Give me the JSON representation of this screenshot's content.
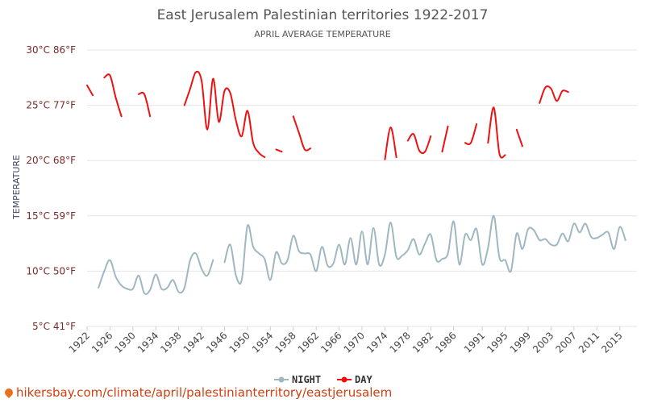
{
  "chart_data": {
    "type": "line",
    "title": "East Jerusalem Palestinian territories 1922-2017",
    "subtitle": "APRIL AVERAGE TEMPERATURE",
    "ylabel": "TEMPERATURE",
    "ylim": [
      5,
      30
    ],
    "yticks": [
      {
        "value": 5,
        "label": "5°C 41°F"
      },
      {
        "value": 10,
        "label": "10°C 50°F"
      },
      {
        "value": 15,
        "label": "15°C 59°F"
      },
      {
        "value": 20,
        "label": "20°C 68°F"
      },
      {
        "value": 25,
        "label": "25°C 77°F"
      },
      {
        "value": 30,
        "label": "30°C 86°F"
      }
    ],
    "xlim": [
      1922,
      2018
    ],
    "xticks": [
      1922,
      1926,
      1930,
      1934,
      1938,
      1942,
      1946,
      1950,
      1954,
      1958,
      1962,
      1966,
      1970,
      1974,
      1978,
      1982,
      1986,
      1991,
      1995,
      1999,
      2003,
      2007,
      2011,
      2015
    ],
    "grid": true,
    "legend_position": "bottom-center",
    "series": [
      {
        "name": "NIGHT",
        "color": "#9fb7c0",
        "values": [
          [
            1924,
            8.5
          ],
          [
            1925,
            10.0
          ],
          [
            1926,
            11.0
          ],
          [
            1927,
            9.5
          ],
          [
            1928,
            8.7
          ],
          [
            1929,
            8.4
          ],
          [
            1930,
            8.4
          ],
          [
            1931,
            9.6
          ],
          [
            1932,
            8.0
          ],
          [
            1933,
            8.3
          ],
          [
            1934,
            9.7
          ],
          [
            1935,
            8.4
          ],
          [
            1936,
            8.5
          ],
          [
            1937,
            9.2
          ],
          [
            1938,
            8.1
          ],
          [
            1939,
            8.5
          ],
          [
            1940,
            11.0
          ],
          [
            1941,
            11.6
          ],
          [
            1942,
            10.2
          ],
          [
            1943,
            9.6
          ],
          [
            1944,
            11.0
          ],
          null,
          [
            1946,
            10.8
          ],
          [
            1947,
            12.4
          ],
          [
            1948,
            9.6
          ],
          [
            1949,
            9.2
          ],
          [
            1950,
            14.1
          ],
          [
            1951,
            12.2
          ],
          [
            1952,
            11.6
          ],
          [
            1953,
            11.1
          ],
          [
            1954,
            9.2
          ],
          [
            1955,
            11.7
          ],
          [
            1956,
            10.7
          ],
          [
            1957,
            11.0
          ],
          [
            1958,
            13.2
          ],
          [
            1959,
            11.8
          ],
          [
            1960,
            11.6
          ],
          [
            1961,
            11.5
          ],
          [
            1962,
            10.0
          ],
          [
            1963,
            12.2
          ],
          [
            1964,
            10.5
          ],
          [
            1965,
            10.7
          ],
          [
            1966,
            12.4
          ],
          [
            1967,
            10.6
          ],
          [
            1968,
            13.0
          ],
          [
            1969,
            10.6
          ],
          [
            1970,
            13.6
          ],
          [
            1971,
            10.6
          ],
          [
            1972,
            13.9
          ],
          [
            1973,
            10.6
          ],
          [
            1974,
            11.5
          ],
          [
            1975,
            14.4
          ],
          [
            1976,
            11.3
          ],
          [
            1977,
            11.4
          ],
          [
            1978,
            11.9
          ],
          [
            1979,
            12.9
          ],
          [
            1980,
            11.5
          ],
          [
            1981,
            12.5
          ],
          [
            1982,
            13.3
          ],
          [
            1983,
            11.0
          ],
          [
            1984,
            11.1
          ],
          [
            1985,
            11.6
          ],
          [
            1986,
            14.5
          ],
          [
            1987,
            10.6
          ],
          [
            1988,
            13.3
          ],
          [
            1989,
            12.8
          ],
          [
            1990,
            13.8
          ],
          [
            1991,
            10.6
          ],
          [
            1992,
            12.1
          ],
          [
            1993,
            15.0
          ],
          [
            1994,
            11.2
          ],
          [
            1995,
            11.0
          ],
          [
            1996,
            10.0
          ],
          [
            1997,
            13.4
          ],
          [
            1998,
            12.0
          ],
          [
            1999,
            13.8
          ],
          [
            2000,
            13.7
          ],
          [
            2001,
            12.8
          ],
          [
            2002,
            12.9
          ],
          [
            2003,
            12.4
          ],
          [
            2004,
            12.4
          ],
          [
            2005,
            13.4
          ],
          [
            2006,
            12.7
          ],
          [
            2007,
            14.3
          ],
          [
            2008,
            13.5
          ],
          [
            2009,
            14.3
          ],
          [
            2010,
            13.1
          ],
          [
            2011,
            13.0
          ],
          [
            2012,
            13.3
          ],
          [
            2013,
            13.5
          ],
          [
            2014,
            12.0
          ],
          [
            2015,
            14.0
          ],
          [
            2016,
            12.8
          ]
        ]
      },
      {
        "name": "DAY",
        "color": "#ee1111",
        "values": [
          [
            1922,
            26.8
          ],
          [
            1923,
            25.9
          ],
          null,
          [
            1925,
            27.5
          ],
          [
            1926,
            27.7
          ],
          [
            1927,
            25.7
          ],
          [
            1928,
            24.0
          ],
          null,
          [
            1931,
            26.0
          ],
          [
            1932,
            26.0
          ],
          [
            1933,
            24.0
          ],
          null,
          [
            1939,
            25.0
          ],
          [
            1940,
            26.5
          ],
          [
            1941,
            28.0
          ],
          [
            1942,
            27.2
          ],
          [
            1943,
            22.8
          ],
          [
            1944,
            27.4
          ],
          [
            1945,
            23.5
          ],
          [
            1946,
            26.3
          ],
          [
            1947,
            26.1
          ],
          [
            1948,
            23.6
          ],
          [
            1949,
            22.2
          ],
          [
            1950,
            24.5
          ],
          [
            1951,
            21.6
          ],
          [
            1952,
            20.7
          ],
          [
            1953,
            20.3
          ],
          null,
          [
            1955,
            21.0
          ],
          [
            1956,
            20.8
          ],
          null,
          [
            1958,
            24.0
          ],
          [
            1959,
            22.5
          ],
          [
            1960,
            21.0
          ],
          [
            1961,
            21.1
          ],
          null,
          [
            1974,
            20.1
          ],
          [
            1975,
            23.0
          ],
          [
            1976,
            20.3
          ],
          null,
          [
            1978,
            21.8
          ],
          [
            1979,
            22.4
          ],
          [
            1980,
            20.9
          ],
          [
            1981,
            20.8
          ],
          [
            1982,
            22.2
          ],
          null,
          [
            1984,
            20.8
          ],
          [
            1985,
            23.1
          ],
          null,
          [
            1988,
            21.6
          ],
          [
            1989,
            21.6
          ],
          [
            1990,
            23.3
          ],
          null,
          [
            1992,
            21.6
          ],
          [
            1993,
            24.8
          ],
          [
            1994,
            20.6
          ],
          [
            1995,
            20.5
          ],
          null,
          [
            1997,
            22.8
          ],
          [
            1998,
            21.3
          ],
          null,
          [
            2001,
            25.2
          ],
          [
            2002,
            26.6
          ],
          [
            2003,
            26.5
          ],
          [
            2004,
            25.4
          ],
          [
            2005,
            26.3
          ],
          [
            2006,
            26.2
          ]
        ]
      }
    ]
  },
  "footer": {
    "url_text": "hikersbay.com/climate/april/palestinianterritory/eastjerusalem",
    "pin_icon": "location-pin-icon"
  }
}
